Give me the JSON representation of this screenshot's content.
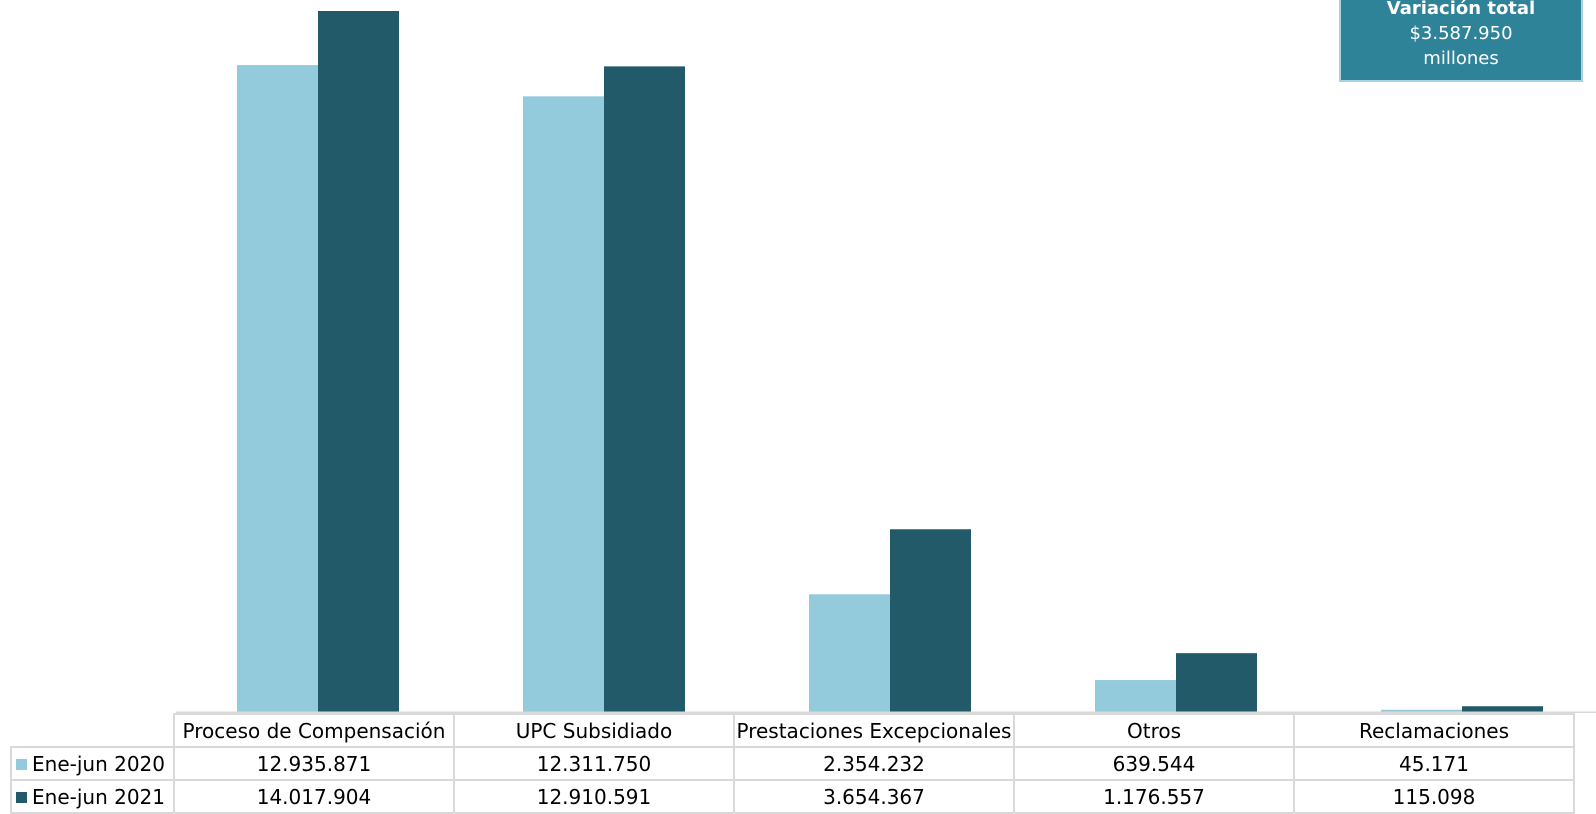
{
  "callout": {
    "title": "Variación total",
    "amount": "$3.587.950",
    "unit": "millones"
  },
  "colors": {
    "series_2020": "#94cbdc",
    "series_2021": "#225a69",
    "callout_bg": "#2e8399"
  },
  "chart_data": {
    "type": "bar",
    "categories": [
      "Proceso de Compensación",
      "UPC Subsidiado",
      "Prestaciones Excepcionales",
      "Otros",
      "Reclamaciones"
    ],
    "series": [
      {
        "name": "Ene-jun 2020",
        "values": [
          12935871,
          12311750,
          2354232,
          639544,
          45171
        ],
        "labels": [
          "12.935.871",
          "12.311.750",
          "2.354.232",
          "639.544",
          "45.171"
        ]
      },
      {
        "name": "Ene-jun 2021",
        "values": [
          14017904,
          12910591,
          3654367,
          1176557,
          115098
        ],
        "labels": [
          "14.017.904",
          "12.910.591",
          "3.654.367",
          "1.176.557",
          "115.098"
        ]
      }
    ],
    "ylim": [
      0,
      14017904
    ],
    "grid": false,
    "legend": "data-table"
  }
}
